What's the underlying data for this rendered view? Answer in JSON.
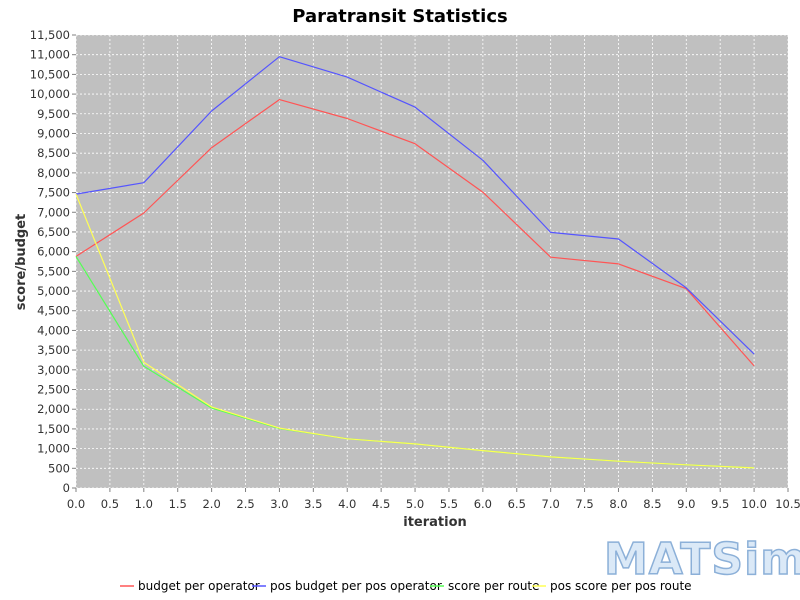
{
  "chart_data": {
    "type": "line",
    "title": "Paratransit Statistics",
    "xlabel": "iteration",
    "ylabel": "score/budget",
    "xlim": [
      0,
      10.5
    ],
    "ylim": [
      0,
      11500
    ],
    "x_ticks": [
      0,
      0.5,
      1,
      1.5,
      2,
      2.5,
      3,
      3.5,
      4,
      4.5,
      5,
      5.5,
      6,
      6.5,
      7,
      7.5,
      8,
      8.5,
      9,
      9.5,
      10,
      10.5
    ],
    "x_tick_labels": [
      "0.0",
      "0.5",
      "1.0",
      "1.5",
      "2.0",
      "2.5",
      "3.0",
      "3.5",
      "4.0",
      "4.5",
      "5.0",
      "5.5",
      "6.0",
      "6.5",
      "7.0",
      "7.5",
      "8.0",
      "8.5",
      "9.0",
      "9.5",
      "10.0",
      "10.5"
    ],
    "y_ticks": [
      0,
      500,
      1000,
      1500,
      2000,
      2500,
      3000,
      3500,
      4000,
      4500,
      5000,
      5500,
      6000,
      6500,
      7000,
      7500,
      8000,
      8500,
      9000,
      9500,
      10000,
      10500,
      11000,
      11500
    ],
    "y_tick_labels": [
      "0",
      "500",
      "1,000",
      "1,500",
      "2,000",
      "2,500",
      "3,000",
      "3,500",
      "4,000",
      "4,500",
      "5,000",
      "5,500",
      "6,000",
      "6,500",
      "7,000",
      "7,500",
      "8,000",
      "8,500",
      "9,000",
      "9,500",
      "10,000",
      "10,500",
      "11,000",
      "11,500"
    ],
    "grid": true,
    "legend_position": "bottom",
    "x": [
      0,
      1,
      2,
      3,
      4,
      5,
      6,
      7,
      8,
      9,
      10
    ],
    "series": [
      {
        "name": "budget per operator",
        "color": "#ff5555",
        "values": [
          5880,
          6980,
          8640,
          9860,
          9380,
          8740,
          7510,
          5860,
          5690,
          5060,
          3100
        ]
      },
      {
        "name": "pos budget per pos operator",
        "color": "#5555ff",
        "values": [
          7460,
          7750,
          9570,
          10950,
          10430,
          9670,
          8320,
          6490,
          6320,
          5080,
          3400
        ]
      },
      {
        "name": "score per route",
        "color": "#55ff55",
        "values": [
          5880,
          3090,
          2030,
          1510,
          1250,
          1120,
          950,
          790,
          680,
          590,
          510
        ]
      },
      {
        "name": "pos score per pos route",
        "color": "#ffff55",
        "values": [
          7460,
          3190,
          2060,
          1520,
          1250,
          1120,
          950,
          790,
          680,
          590,
          510
        ]
      }
    ]
  },
  "logo": {
    "text": "MATSim",
    "fill": "#dbe9f7",
    "stroke": "#8cb0d8"
  },
  "plot_style": {
    "background": "#c0c0c0",
    "gridline": "#ffffff"
  }
}
